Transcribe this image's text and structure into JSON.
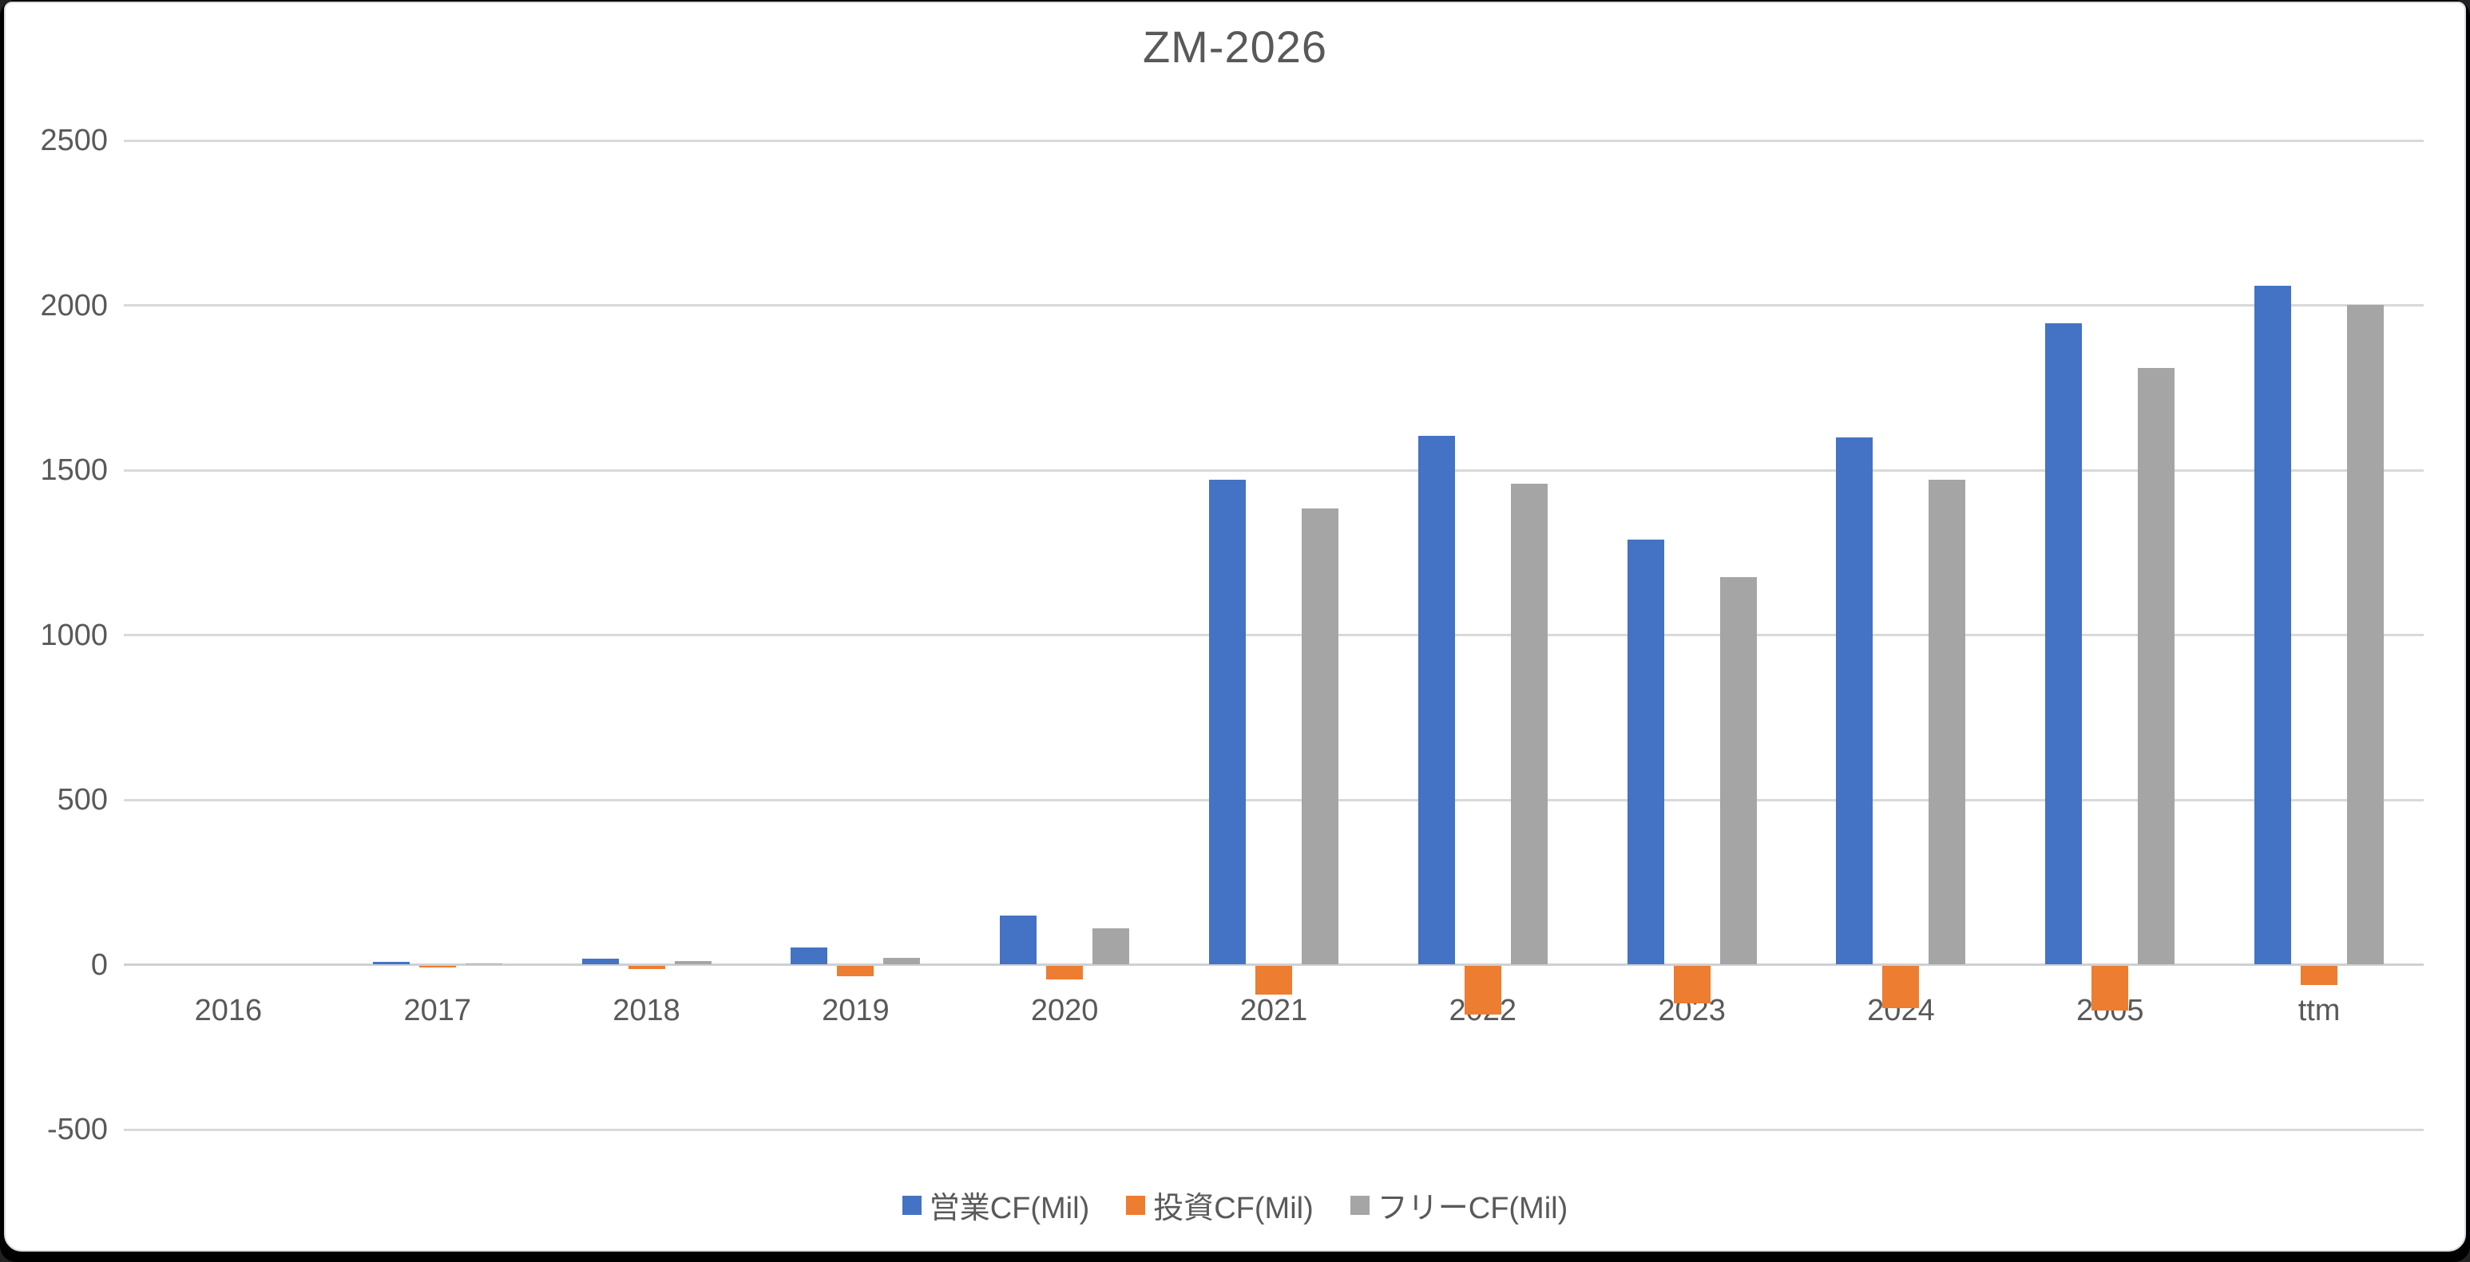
{
  "window": {
    "title": "ZM-2026"
  },
  "chart_data": {
    "type": "bar",
    "title": "ZM-2026",
    "categories": [
      "2016",
      "2017",
      "2018",
      "2019",
      "2020",
      "2021",
      "2022",
      "2023",
      "2024",
      "2005",
      "ttm"
    ],
    "series": [
      {
        "id": "operating-cf",
        "name": "営業CF(Mil)",
        "color": "#4472C4",
        "values": [
          0,
          9,
          19,
          51,
          150,
          1471,
          1605,
          1290,
          1599,
          1945,
          2059
        ]
      },
      {
        "id": "investing-cf",
        "name": "投資CF(Mil)",
        "color": "#ED7D31",
        "values": [
          0,
          -5,
          -9,
          -31,
          -40,
          -88,
          -147,
          -115,
          -128,
          -135,
          -58
        ]
      },
      {
        "id": "free-cf",
        "name": "フリーCF(Mil)",
        "color": "#A5A5A5",
        "values": [
          0,
          4,
          10,
          20,
          110,
          1383,
          1458,
          1175,
          1471,
          1810,
          2001
        ]
      }
    ],
    "ylim": [
      -500,
      2500
    ],
    "yticks": [
      2500,
      2000,
      1500,
      1000,
      500,
      0,
      -500
    ],
    "grid": true,
    "legend_position": "bottom",
    "xlabel": "",
    "ylabel": ""
  },
  "colors": {
    "title_text": "#595959",
    "axis_text": "#595959",
    "gridline": "#D9D9D9",
    "background": "#FFFFFF",
    "frame_border": "#000000"
  }
}
